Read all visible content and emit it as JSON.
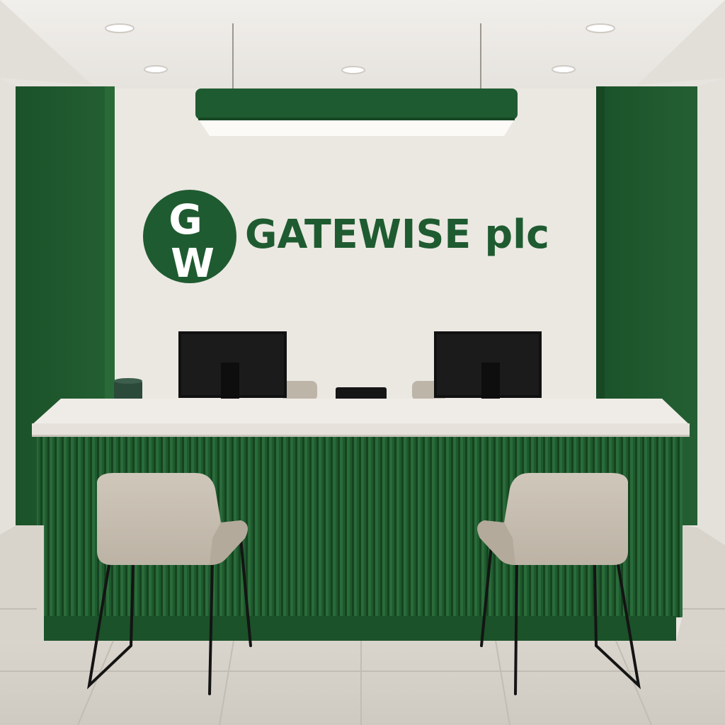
{
  "brand": {
    "monogram_top": "G",
    "monogram_bottom": "W",
    "name": "GATEWISE plc",
    "color": "#1f5b30"
  },
  "palette": {
    "accent_green": "#1f5b30",
    "wall": "#ebe8e2",
    "counter_top": "#efece7",
    "floor": "#d6d2ca",
    "chair_fabric": "#c9c1b4"
  }
}
